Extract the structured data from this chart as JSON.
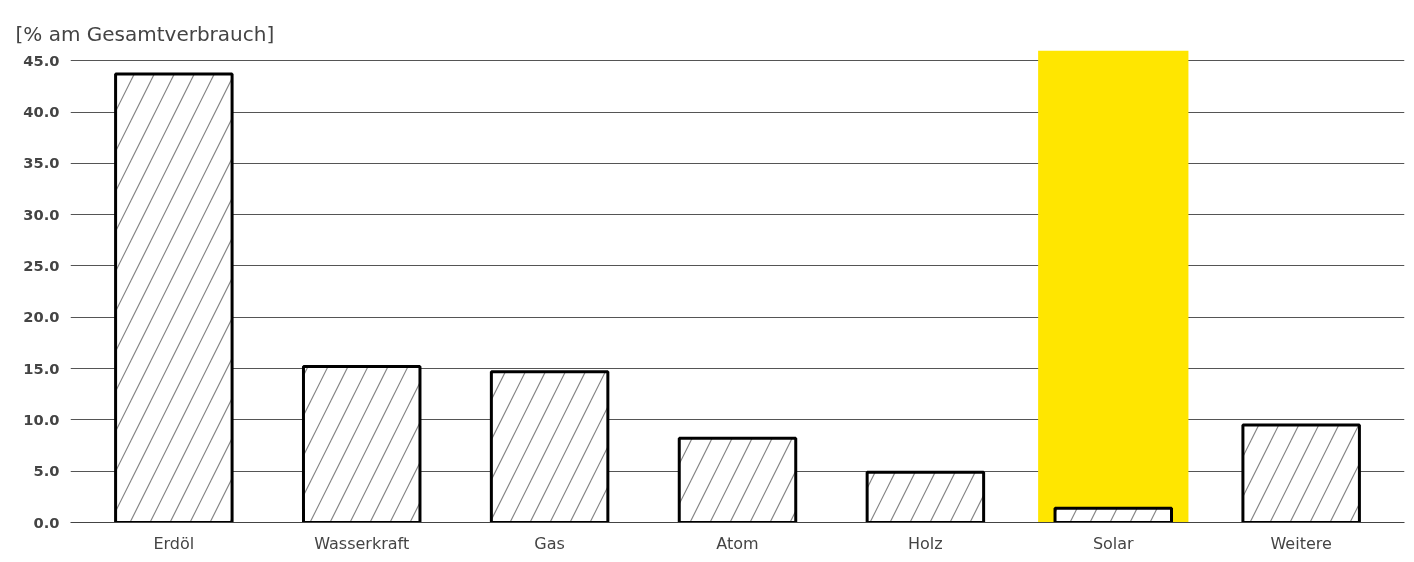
{
  "chart_data": {
    "type": "bar",
    "ylabel": "[% am Gesamtverbrauch]",
    "categories": [
      "Erdöl",
      "Wasserkraft",
      "Gas",
      "Atom",
      "Holz",
      "Solar",
      "Weitere"
    ],
    "values": [
      43.7,
      15.2,
      14.7,
      8.2,
      4.9,
      1.4,
      9.5
    ],
    "color": "#ffffff",
    "ylim": [
      0,
      46
    ],
    "yticks": [
      {
        "value": 0,
        "label": "0.0"
      },
      {
        "value": 5,
        "label": "5.0"
      },
      {
        "value": 10,
        "label": "10.0"
      },
      {
        "value": 15,
        "label": "15.0"
      },
      {
        "value": 20,
        "label": "20.0"
      },
      {
        "value": 25,
        "label": "25.0"
      },
      {
        "value": 30,
        "label": "30.0"
      },
      {
        "value": 35,
        "label": "35.0"
      },
      {
        "value": 40,
        "label": "40.0"
      },
      {
        "value": 45,
        "label": "45.0"
      }
    ],
    "bands": [
      {
        "axis": "x",
        "from": "Solar",
        "to": "Solar",
        "color": "#ffe600"
      }
    ],
    "grid": "y"
  }
}
